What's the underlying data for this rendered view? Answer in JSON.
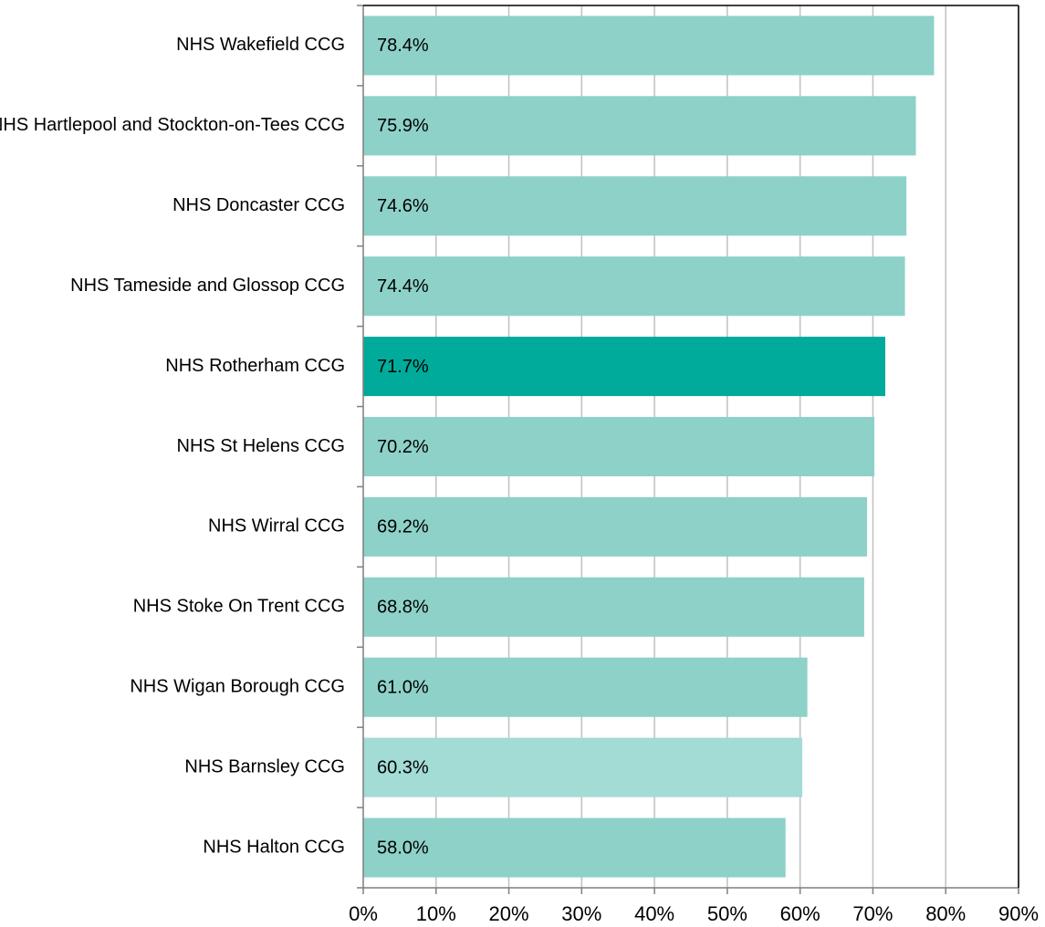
{
  "chart_data": {
    "type": "barh",
    "categories": [
      "NHS Wakefield CCG",
      "NHS Hartlepool and Stockton-on-Tees CCG",
      "NHS Doncaster CCG",
      "NHS Tameside and Glossop CCG",
      "NHS Rotherham CCG",
      "NHS St Helens CCG",
      "NHS Wirral CCG",
      "NHS Stoke On Trent CCG",
      "NHS Wigan Borough CCG",
      "NHS Barnsley CCG",
      "NHS Halton CCG"
    ],
    "values": [
      78.4,
      75.9,
      74.6,
      74.4,
      71.7,
      70.2,
      69.2,
      68.8,
      61.0,
      60.3,
      58.0
    ],
    "value_labels": [
      "78.4%",
      "75.9%",
      "74.6%",
      "74.4%",
      "71.7%",
      "70.2%",
      "69.2%",
      "68.8%",
      "61.0%",
      "60.3%",
      "58.0%"
    ],
    "colors": [
      "#8dd1c8",
      "#8dd1c8",
      "#8dd1c8",
      "#8dd1c8",
      "#00ab9b",
      "#8dd1c8",
      "#8dd1c8",
      "#8dd1c8",
      "#8dd1c8",
      "#a3dbd5",
      "#8dd1c8"
    ],
    "xlim": [
      0,
      90
    ],
    "xticks": [
      {
        "value": 0,
        "label": "0%"
      },
      {
        "value": 10,
        "label": "10%"
      },
      {
        "value": 20,
        "label": "20%"
      },
      {
        "value": 30,
        "label": "30%"
      },
      {
        "value": 40,
        "label": "40%"
      },
      {
        "value": 50,
        "label": "50%"
      },
      {
        "value": 60,
        "label": "60%"
      },
      {
        "value": 70,
        "label": "70%"
      },
      {
        "value": 80,
        "label": "80%"
      },
      {
        "value": 90,
        "label": "90%"
      }
    ],
    "grid": true
  }
}
